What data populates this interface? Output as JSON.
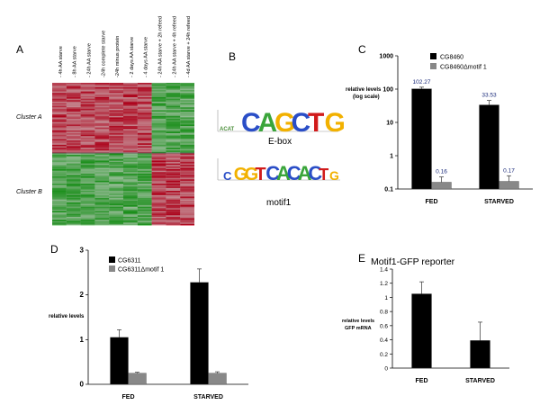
{
  "panels": {
    "A": {
      "letter": "A",
      "column_labels": [
        "- 4h AA starve",
        "- 8h AA starve",
        "- 24h AA starve",
        "-24h complete starve",
        "-24h minus protein",
        "- 2 days AA starve",
        "- 4 days AA starve",
        "- 24h AA starve + 2h refeed",
        "- 24h AA starve + 4h refeed",
        "- 4d AA starve + 24h refeed"
      ],
      "clusters": [
        "Cluster A",
        "Cluster B"
      ],
      "heatmap_colors": {
        "up": "#d2001e",
        "down": "#1fae1f",
        "neutral": "#000000"
      }
    },
    "B": {
      "letter": "B",
      "motifs": [
        {
          "name": "E-box",
          "sequence": "CAGCTG"
        },
        {
          "name": "motif1",
          "sequence": "CGGTCACACTG"
        }
      ]
    },
    "C": {
      "letter": "C",
      "ylabel_line1": "relative levels",
      "ylabel_line2": "(log scale)"
    },
    "D": {
      "letter": "D",
      "ylabel": "relative levels"
    },
    "E": {
      "letter": "E",
      "title": "Motif1-GFP reporter",
      "ylabel_line1": "relative levels",
      "ylabel_line2": "GFP mRNA"
    }
  },
  "chart_data": [
    {
      "panel": "C",
      "type": "bar",
      "scale": "log",
      "categories": [
        "FED",
        "STARVED"
      ],
      "series": [
        {
          "name": "CG8460",
          "color": "#000000",
          "values": [
            102.27,
            33.53
          ],
          "errors": [
            12,
            12
          ]
        },
        {
          "name": "CG8460Δmotif 1",
          "color": "#888888",
          "values": [
            0.16,
            0.17
          ],
          "errors": [
            0.07,
            0.08
          ]
        }
      ],
      "data_labels": [
        "102.27",
        "33.53",
        "0.16",
        "0.17"
      ],
      "yticks": [
        1000,
        100,
        10,
        1,
        0.1
      ],
      "ytick_labels": [
        "1000",
        "100",
        "10",
        "1",
        "0.1"
      ],
      "ylim": [
        0.1,
        1000
      ],
      "legend": "top-right"
    },
    {
      "panel": "D",
      "type": "bar",
      "categories": [
        "FED",
        "STARVED"
      ],
      "series": [
        {
          "name": "CG6311",
          "color": "#000000",
          "values": [
            1.05,
            2.28
          ],
          "errors": [
            0.17,
            0.3
          ]
        },
        {
          "name": "CG6311Δmotif 1",
          "color": "#888888",
          "values": [
            0.25,
            0.25
          ],
          "errors": [
            0.02,
            0.03
          ]
        }
      ],
      "yticks": [
        0,
        1,
        2,
        3
      ],
      "ytick_labels": [
        "0",
        "1",
        "2",
        "3"
      ],
      "ylim": [
        0,
        3
      ],
      "legend": "top-left"
    },
    {
      "panel": "E",
      "type": "bar",
      "categories": [
        "FED",
        "STARVED"
      ],
      "series": [
        {
          "name": "",
          "color": "#000000",
          "values": [
            1.05,
            0.39
          ],
          "errors": [
            0.17,
            0.26
          ]
        }
      ],
      "yticks": [
        0,
        0.2,
        0.4,
        0.6,
        0.8,
        1,
        1.2,
        1.4
      ],
      "ytick_labels": [
        "0",
        "0.2",
        "0.4",
        "0.6",
        "0.8",
        "1",
        "1.2",
        "1.4"
      ],
      "ylim": [
        0,
        1.4
      ]
    }
  ]
}
